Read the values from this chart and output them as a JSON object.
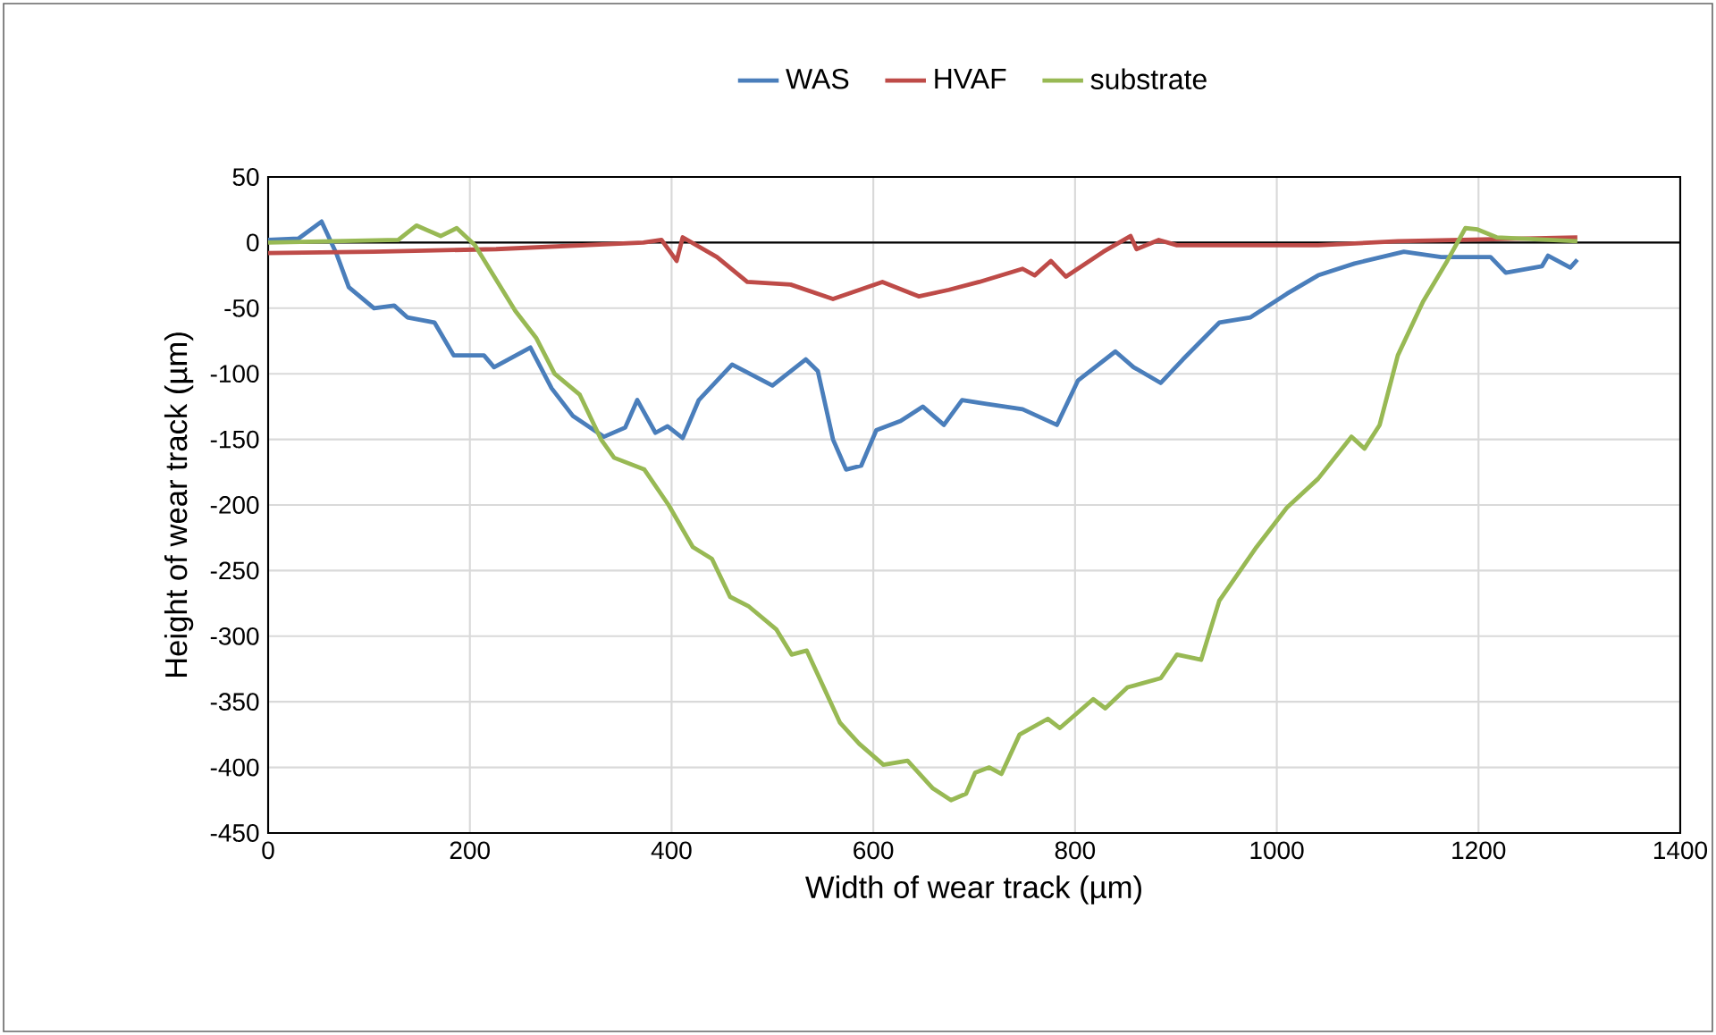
{
  "chart_data": {
    "type": "line",
    "xlabel": "Width of wear track (µm)",
    "ylabel": "Height of wear track (µm)",
    "xlim": [
      0,
      1400
    ],
    "ylim": [
      -450,
      50
    ],
    "xticks": [
      0,
      200,
      400,
      600,
      800,
      1000,
      1200,
      1400
    ],
    "yticks": [
      -450,
      -400,
      -350,
      -300,
      -250,
      -200,
      -150,
      -100,
      -50,
      0,
      50
    ],
    "grid": true,
    "legend": "top",
    "marker": "none",
    "line_style": "solid",
    "series": [
      {
        "name": "WAS",
        "color": "#4a7ebb",
        "x": [
          0,
          30,
          53,
          68,
          80,
          105,
          125,
          138,
          165,
          184,
          214,
          224,
          260,
          281,
          302,
          333,
          354,
          366,
          384,
          396,
          411,
          427,
          460,
          500,
          533,
          545,
          560,
          573,
          588,
          603,
          627,
          649,
          670,
          688,
          712,
          748,
          782,
          803,
          840,
          858,
          885,
          907,
          943,
          974,
          1010,
          1041,
          1077,
          1126,
          1163,
          1212,
          1227,
          1263,
          1269,
          1291,
          1298
        ],
        "values": [
          2,
          3,
          16,
          -9,
          -34,
          -50,
          -48,
          -57,
          -61,
          -86,
          -86,
          -95,
          -80,
          -111,
          -132,
          -148,
          -141,
          -120,
          -145,
          -140,
          -149,
          -120,
          -93,
          -109,
          -89,
          -98,
          -150,
          -173,
          -170,
          -143,
          -136,
          -125,
          -139,
          -120,
          -123,
          -127,
          -139,
          -105,
          -83,
          -95,
          -107,
          -89,
          -61,
          -57,
          -39,
          -25,
          -16,
          -7,
          -11,
          -11,
          -23,
          -18,
          -10,
          -19,
          -13
        ]
      },
      {
        "name": "HVAF",
        "color": "#be4b48",
        "x": [
          0,
          105,
          226,
          372,
          390,
          405,
          411,
          445,
          475,
          518,
          560,
          609,
          645,
          675,
          705,
          748,
          760,
          776,
          791,
          828,
          855,
          861,
          883,
          901,
          1041,
          1120,
          1298
        ],
        "values": [
          -8,
          -7,
          -5,
          0,
          2,
          -14,
          4,
          -11,
          -30,
          -32,
          -43,
          -30,
          -41,
          -36,
          -30,
          -20,
          -25,
          -14,
          -26,
          -7,
          5,
          -5,
          2,
          -2,
          -2,
          1,
          4
        ]
      },
      {
        "name": "substrate",
        "color": "#98b954",
        "x": [
          0,
          129,
          147,
          171,
          187,
          205,
          245,
          266,
          284,
          309,
          330,
          343,
          373,
          397,
          421,
          440,
          458,
          476,
          504,
          519,
          534,
          567,
          586,
          610,
          634,
          659,
          677,
          692,
          701,
          715,
          727,
          745,
          773,
          785,
          818,
          830,
          852,
          885,
          901,
          925,
          943,
          980,
          1010,
          1041,
          1074,
          1087,
          1102,
          1120,
          1145,
          1169,
          1187,
          1199,
          1218,
          1298
        ],
        "values": [
          0,
          2,
          13,
          5,
          11,
          -2,
          -52,
          -73,
          -100,
          -116,
          -150,
          -164,
          -173,
          -200,
          -232,
          -241,
          -270,
          -277,
          -295,
          -314,
          -311,
          -366,
          -382,
          -398,
          -395,
          -416,
          -425,
          -420,
          -404,
          -400,
          -405,
          -375,
          -363,
          -370,
          -348,
          -355,
          -339,
          -332,
          -314,
          -318,
          -273,
          -232,
          -202,
          -180,
          -148,
          -157,
          -139,
          -86,
          -45,
          -14,
          11,
          10,
          4,
          1
        ]
      }
    ]
  }
}
